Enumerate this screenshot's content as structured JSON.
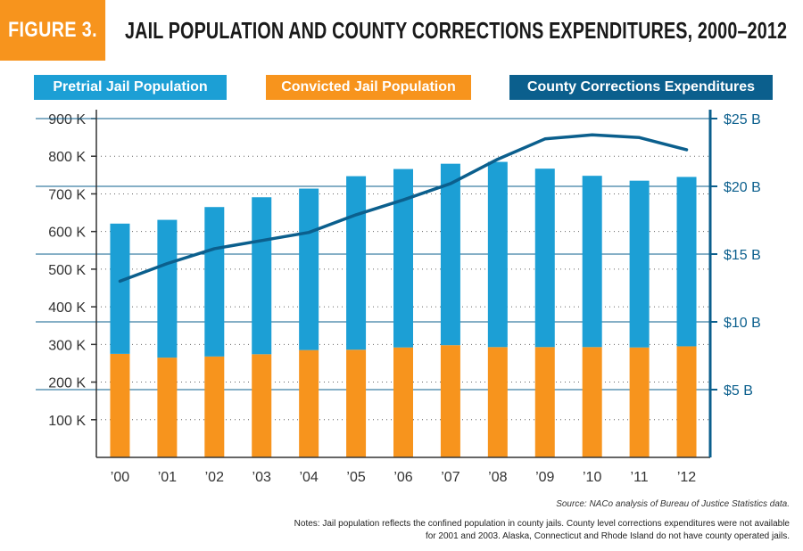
{
  "header": {
    "figure_label": "FIGURE 3.",
    "title": "JAIL POPULATION AND COUNTY CORRECTIONS EXPENDITURES, 2000–2012"
  },
  "legend": {
    "pretrial": "Pretrial Jail Population",
    "convicted": "Convicted Jail Population",
    "expenditures": "County Corrections Expenditures"
  },
  "colors": {
    "pretrial": "#1c9fd5",
    "convicted": "#f7941d",
    "expenditures": "#0b5f8d",
    "badge": "#f7941d"
  },
  "chart_data": {
    "type": "bar",
    "categories": [
      "’00",
      "’01",
      "’02",
      "’03",
      "’04",
      "’05",
      "’06",
      "’07",
      "’08",
      "’09",
      "’10",
      "’11",
      "’12"
    ],
    "series": [
      {
        "name": "Convicted Jail Population",
        "type": "bar",
        "stack": "jail",
        "values": [
          275,
          265,
          268,
          274,
          285,
          286,
          292,
          298,
          293,
          293,
          293,
          292,
          295
        ]
      },
      {
        "name": "Pretrial Jail Population",
        "type": "bar",
        "stack": "jail",
        "values": [
          346,
          366,
          397,
          417,
          429,
          461,
          474,
          482,
          492,
          474,
          455,
          443,
          450
        ]
      },
      {
        "name": "County Corrections Expenditures",
        "type": "line",
        "axis": "right",
        "values": [
          13.0,
          14.3,
          15.4,
          16.0,
          16.6,
          17.9,
          19.0,
          20.2,
          22.0,
          23.5,
          23.8,
          23.6,
          22.7
        ]
      }
    ],
    "y_left": {
      "ylim": [
        0,
        900
      ],
      "ticks": [
        100,
        200,
        300,
        400,
        500,
        600,
        700,
        800,
        900
      ],
      "tick_labels": [
        "100 K",
        "200 K",
        "300 K",
        "400 K",
        "500 K",
        "600 K",
        "700 K",
        "800 K",
        "900 K"
      ]
    },
    "y_right": {
      "ylim": [
        0,
        25
      ],
      "ticks": [
        5,
        10,
        15,
        20,
        25
      ],
      "tick_labels": [
        "$5 B",
        "$10 B",
        "$15 B",
        "$20 B",
        "$25 B"
      ]
    },
    "grid": "dotted horizontal (left axis) and solid horizontal (right axis)",
    "legend_position": "top"
  },
  "footer": {
    "source": "Source: NACo analysis of Bureau of Justice Statistics data.",
    "notes_line1": "Notes: Jail population reflects the confined population in county jails. County level corrections expenditures were not available",
    "notes_line2": "for 2001 and 2003.  Alaska, Connecticut and Rhode Island do not have county operated jails."
  }
}
